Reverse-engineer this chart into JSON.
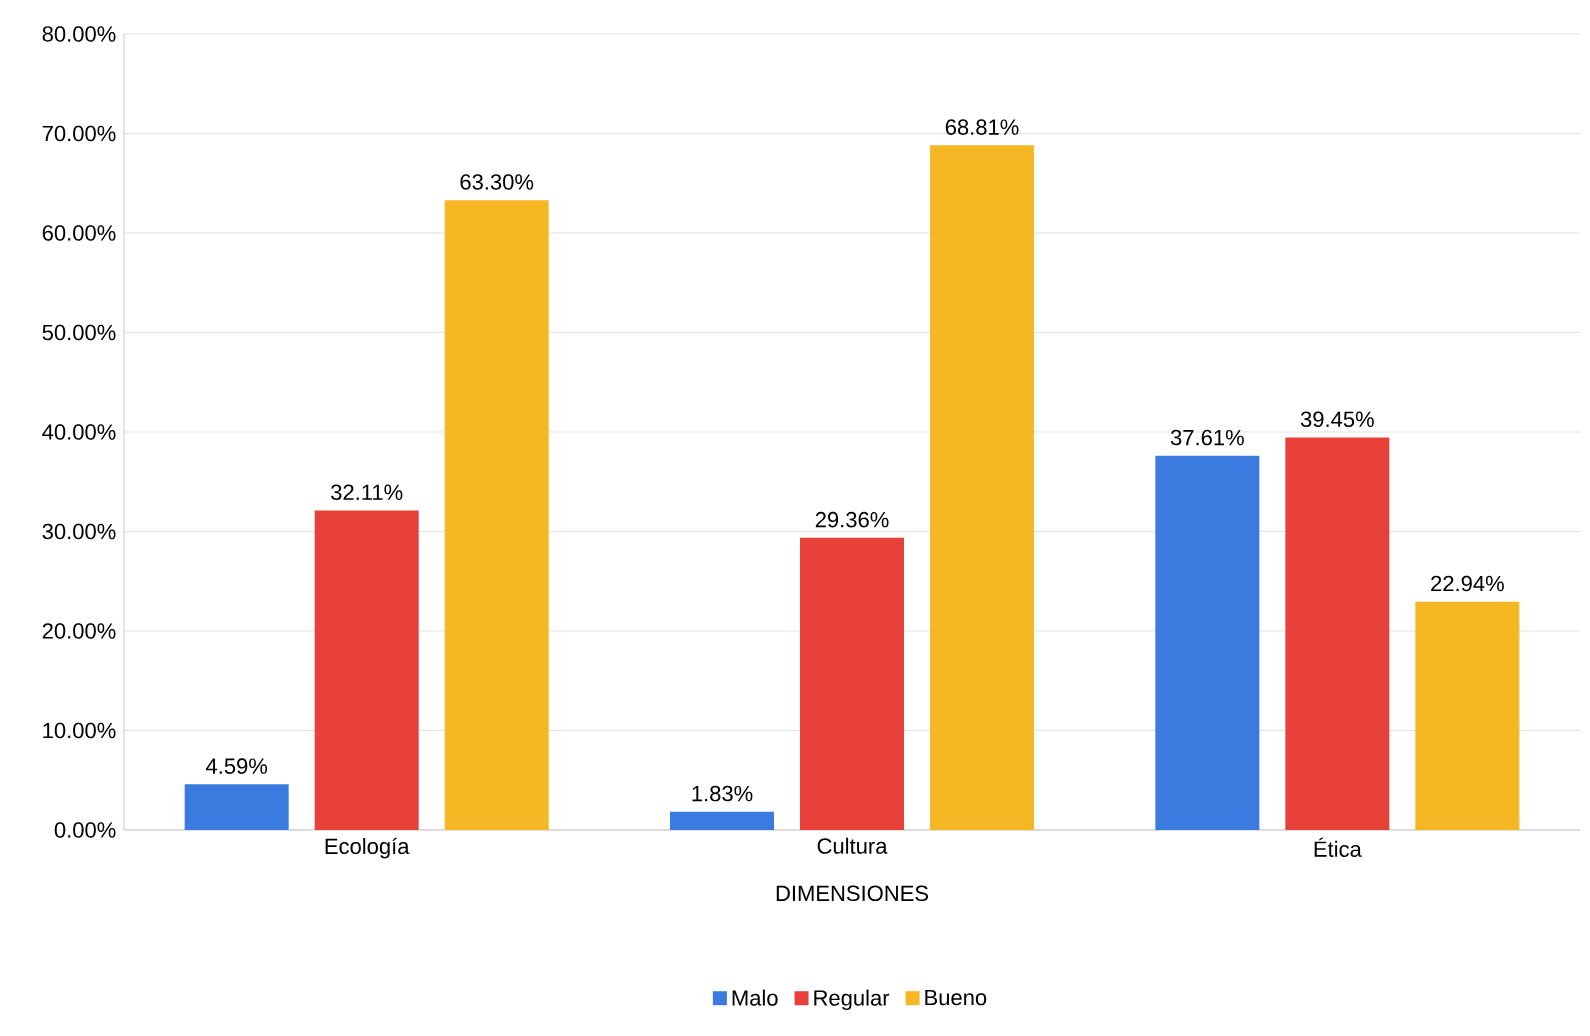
{
  "chart_data": {
    "type": "bar",
    "xlabel": "DIMENSIONES",
    "categories": [
      "Ecología",
      "Cultura",
      "Ética"
    ],
    "series": [
      {
        "name": "Malo",
        "color": "#3b7be0",
        "values": [
          4.59,
          1.83,
          37.61
        ],
        "value_labels": [
          "4.59%",
          "1.83%",
          "37.61%"
        ]
      },
      {
        "name": "Regular",
        "color": "#e8413a",
        "values": [
          32.11,
          29.36,
          39.45
        ],
        "value_labels": [
          "32.11%",
          "29.36%",
          "39.45%"
        ]
      },
      {
        "name": "Bueno",
        "color": "#f5b724",
        "values": [
          63.3,
          68.81,
          22.94
        ],
        "value_labels": [
          "63.30%",
          "68.81%",
          "22.94%"
        ]
      }
    ],
    "ylim": [
      0,
      80
    ],
    "yticks": [
      {
        "value": 0,
        "label": "0.00%"
      },
      {
        "value": 10,
        "label": "10.00%"
      },
      {
        "value": 20,
        "label": "20.00%"
      },
      {
        "value": 30,
        "label": "30.00%"
      },
      {
        "value": 40,
        "label": "40.00%"
      },
      {
        "value": 50,
        "label": "50.00%"
      },
      {
        "value": 60,
        "label": "60.00%"
      },
      {
        "value": 70,
        "label": "70.00%"
      },
      {
        "value": 80,
        "label": "80.00%"
      }
    ],
    "grid": "y",
    "legend": "bottom"
  }
}
